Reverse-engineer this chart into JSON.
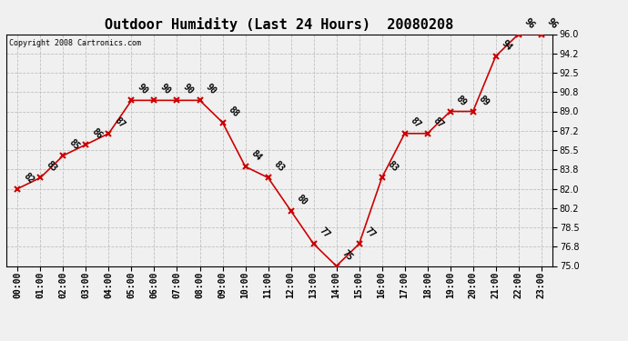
{
  "title": "Outdoor Humidity (Last 24 Hours)  20080208",
  "copyright": "Copyright 2008 Cartronics.com",
  "hours": [
    "00:00",
    "01:00",
    "02:00",
    "03:00",
    "04:00",
    "05:00",
    "06:00",
    "07:00",
    "08:00",
    "09:00",
    "10:00",
    "11:00",
    "12:00",
    "13:00",
    "14:00",
    "15:00",
    "16:00",
    "17:00",
    "18:00",
    "19:00",
    "20:00",
    "21:00",
    "22:00",
    "23:00"
  ],
  "values": [
    82,
    83,
    85,
    86,
    87,
    90,
    90,
    90,
    90,
    88,
    84,
    83,
    80,
    77,
    75,
    77,
    83,
    87,
    87,
    89,
    89,
    94,
    96,
    96
  ],
  "ylim": [
    75.0,
    96.0
  ],
  "yticks": [
    75.0,
    76.8,
    78.5,
    80.2,
    82.0,
    83.8,
    85.5,
    87.2,
    89.0,
    90.8,
    92.5,
    94.2,
    96.0
  ],
  "line_color": "#cc0000",
  "marker_color": "#cc0000",
  "bg_color": "#f0f0f0",
  "grid_color": "#c0c0c0",
  "title_fontsize": 11,
  "label_fontsize": 7,
  "annotation_fontsize": 7,
  "copyright_fontsize": 6
}
